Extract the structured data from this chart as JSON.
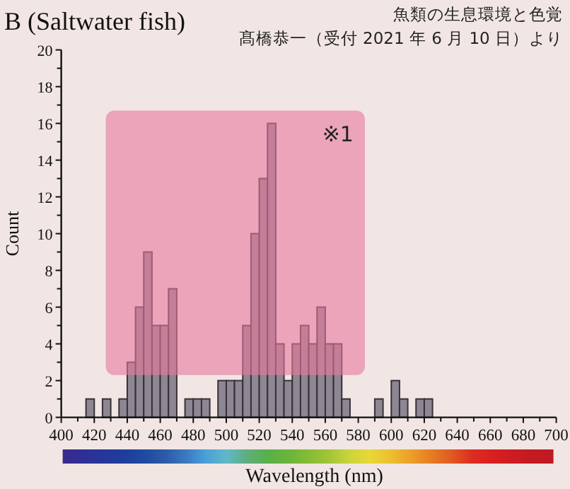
{
  "chart_data": {
    "type": "histogram",
    "title": "B (Saltwater fish)",
    "xlabel": "Wavelength (nm)",
    "ylabel": "Count",
    "annotations": [
      "魚類の生息環境と色覚",
      "髙橋恭一（受付 2021 年 6 月 10 日）より"
    ],
    "bins": [
      415,
      420,
      425,
      430,
      435,
      440,
      445,
      450,
      455,
      460,
      465,
      470,
      475,
      480,
      485,
      490,
      495,
      500,
      505,
      510,
      515,
      520,
      525,
      530,
      535,
      540,
      545,
      550,
      555,
      560,
      565,
      570,
      575,
      580,
      585,
      590,
      595,
      600,
      605,
      610,
      615,
      620,
      625
    ],
    "values": [
      1,
      0,
      1,
      0,
      1,
      3,
      6,
      9,
      5,
      5,
      7,
      0,
      1,
      1,
      1,
      0,
      2,
      2,
      2,
      5,
      10,
      13,
      16,
      4,
      2,
      4,
      5,
      4,
      6,
      4,
      4,
      1,
      0,
      0,
      0,
      1,
      0,
      2,
      1,
      0,
      1,
      1
    ],
    "color": "#8c8792",
    "xlim": [
      400,
      700
    ],
    "xticks": [
      400,
      {
        "value": 410,
        "label": null
      },
      420,
      {
        "value": 430,
        "label": null
      },
      440,
      {
        "value": 450,
        "label": null
      },
      460,
      {
        "value": 470,
        "label": null
      },
      480,
      {
        "value": 490,
        "label": null
      },
      500,
      {
        "value": 510,
        "label": null
      },
      520,
      {
        "value": 530,
        "label": null
      },
      540,
      {
        "value": 550,
        "label": null
      },
      560,
      {
        "value": 570,
        "label": null
      },
      580,
      {
        "value": 590,
        "label": null
      },
      600,
      {
        "value": 610,
        "label": null
      },
      620,
      {
        "value": 630,
        "label": null
      },
      640,
      {
        "value": 650,
        "label": null
      },
      660,
      {
        "value": 670,
        "label": null
      },
      680,
      {
        "value": 690,
        "label": null
      },
      700
    ],
    "ylim": [
      0,
      20
    ],
    "yticks": [
      0,
      {
        "value": 1,
        "label": null
      },
      2,
      {
        "value": 3,
        "label": null
      },
      4,
      {
        "value": 5,
        "label": null
      },
      6,
      {
        "value": 7,
        "label": null
      },
      8,
      {
        "value": 9,
        "label": null
      },
      10,
      {
        "value": 11,
        "label": null
      },
      12,
      {
        "value": 13,
        "label": null
      },
      14,
      {
        "value": 15,
        "label": null
      },
      16,
      {
        "value": 17,
        "label": null
      },
      18,
      {
        "value": 19,
        "label": null
      },
      20
    ],
    "bands": [
      {
        "axis": "x",
        "from": 427,
        "to": 584,
        "label": "※1",
        "color": "#e8789c"
      }
    ],
    "grid": false
  }
}
